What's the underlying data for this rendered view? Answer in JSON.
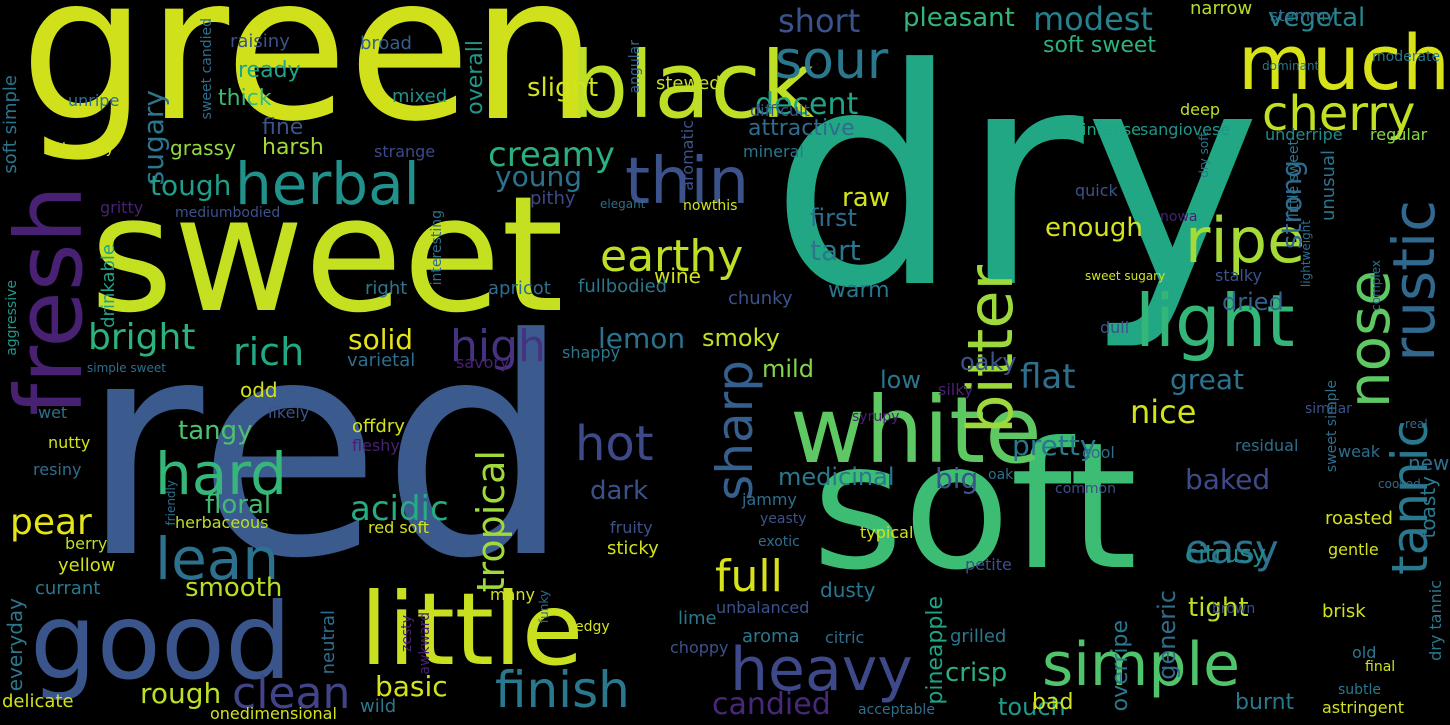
{
  "background": "#000000",
  "words": [
    {
      "text": "dry",
      "color": "#22a784"
    },
    {
      "text": "red",
      "color": "#3b5a8e"
    },
    {
      "text": "green",
      "color": "#d0e11c"
    },
    {
      "text": "sweet",
      "color": "#c5e021"
    },
    {
      "text": "soft",
      "color": "#3dbc74"
    },
    {
      "text": "black",
      "color": "#bddf26"
    },
    {
      "text": "good",
      "color": "#39558c"
    },
    {
      "text": "little",
      "color": "#c8e020"
    },
    {
      "text": "white",
      "color": "#5ec962"
    },
    {
      "text": "fresh",
      "color": "#482173"
    },
    {
      "text": "much",
      "color": "#d8e219"
    },
    {
      "text": "cherry",
      "color": "#c2df23"
    },
    {
      "text": "herbal",
      "color": "#21918c"
    },
    {
      "text": "sour",
      "color": "#2a788e"
    },
    {
      "text": "thin",
      "color": "#3b528b"
    },
    {
      "text": "light",
      "color": "#34b679"
    },
    {
      "text": "ripe",
      "color": "#a5db36"
    },
    {
      "text": "bitter",
      "color": "#9dd93b"
    },
    {
      "text": "nose",
      "color": "#5ec962"
    },
    {
      "text": "rustic",
      "color": "#31688e"
    },
    {
      "text": "tannic",
      "color": "#2a788e"
    },
    {
      "text": "heavy",
      "color": "#3e4989"
    },
    {
      "text": "simple",
      "color": "#50c46a"
    },
    {
      "text": "hard",
      "color": "#35b779"
    },
    {
      "text": "lean",
      "color": "#2c718e"
    },
    {
      "text": "sharp",
      "color": "#355f8d"
    },
    {
      "text": "earthy",
      "color": "#bddf26"
    },
    {
      "text": "hot",
      "color": "#3e4989"
    },
    {
      "text": "finish",
      "color": "#2a788e"
    },
    {
      "text": "tropical",
      "color": "#9fda3a"
    },
    {
      "text": "full",
      "color": "#d8e219"
    },
    {
      "text": "clean",
      "color": "#414487"
    },
    {
      "text": "acidic",
      "color": "#25ac82"
    },
    {
      "text": "easy",
      "color": "#2c728e"
    },
    {
      "text": "rich",
      "color": "#22a884"
    },
    {
      "text": "high",
      "color": "#46327e"
    },
    {
      "text": "bright",
      "color": "#2db27d"
    },
    {
      "text": "pear",
      "color": "#e5e419"
    },
    {
      "text": "sugary",
      "color": "#2b758e"
    },
    {
      "text": "creamy",
      "color": "#2ab07f"
    },
    {
      "text": "decent",
      "color": "#20a386"
    },
    {
      "text": "attractive",
      "color": "#2f6c8e"
    },
    {
      "text": "pleasant",
      "color": "#31b57b"
    },
    {
      "text": "modest",
      "color": "#27808e"
    },
    {
      "text": "short",
      "color": "#3a538b"
    },
    {
      "text": "vegetal",
      "color": "#24878e"
    },
    {
      "text": "soft sweet",
      "color": "#2db27d"
    },
    {
      "text": "flat",
      "color": "#2e6f8e"
    },
    {
      "text": "crisp",
      "color": "#2ab07f"
    },
    {
      "text": "basic",
      "color": "#d2e21b"
    },
    {
      "text": "rough",
      "color": "#bddf26"
    },
    {
      "text": "smooth",
      "color": "#b8de29"
    },
    {
      "text": "floral",
      "color": "#3fbc73"
    },
    {
      "text": "tangy",
      "color": "#4cc26c"
    },
    {
      "text": "dark",
      "color": "#3b518b"
    },
    {
      "text": "baked",
      "color": "#3e4a89"
    },
    {
      "text": "great",
      "color": "#2c738e"
    },
    {
      "text": "pretty",
      "color": "#2a788e"
    },
    {
      "text": "nice",
      "color": "#d2e21b"
    },
    {
      "text": "candied",
      "color": "#482878"
    },
    {
      "text": "touch",
      "color": "#1e9b8a"
    },
    {
      "text": "solid",
      "color": "#e5e419"
    },
    {
      "text": "lemon",
      "color": "#2c718e"
    },
    {
      "text": "smoky",
      "color": "#c0df25"
    },
    {
      "text": "mild",
      "color": "#84d44b"
    },
    {
      "text": "low",
      "color": "#2a768e"
    },
    {
      "text": "oaky",
      "color": "#3b528b"
    },
    {
      "text": "big",
      "color": "#3b528b"
    },
    {
      "text": "medicinal",
      "color": "#2a788e"
    },
    {
      "text": "tough",
      "color": "#1f9e89"
    },
    {
      "text": "young",
      "color": "#2c718e"
    },
    {
      "text": "raw",
      "color": "#d2e21b"
    },
    {
      "text": "first",
      "color": "#2e6e8e"
    },
    {
      "text": "tart",
      "color": "#2a778e"
    },
    {
      "text": "warm",
      "color": "#2a768e"
    },
    {
      "text": "wine",
      "color": "#d2e21b"
    },
    {
      "text": "enough",
      "color": "#d2e21b"
    },
    {
      "text": "strong",
      "color": "#31688e"
    },
    {
      "text": "dried",
      "color": "#34618d"
    },
    {
      "text": "tight",
      "color": "#bddf26"
    },
    {
      "text": "citrusy",
      "color": "#228c8d"
    },
    {
      "text": "generic",
      "color": "#2f6c8e"
    },
    {
      "text": "overripe",
      "color": "#2a778e"
    },
    {
      "text": "pineapple",
      "color": "#20a486"
    },
    {
      "text": "ready",
      "color": "#20a486"
    },
    {
      "text": "thick",
      "color": "#3bbb75"
    },
    {
      "text": "fine",
      "color": "#3b528b"
    },
    {
      "text": "harsh",
      "color": "#a2da37"
    },
    {
      "text": "grassy",
      "color": "#94d840"
    },
    {
      "text": "slight",
      "color": "#d2e21b"
    },
    {
      "text": "overall",
      "color": "#1f978b"
    },
    {
      "text": "raisiny",
      "color": "#3b528b"
    },
    {
      "text": "mixed",
      "color": "#20938c"
    },
    {
      "text": "broad",
      "color": "#34608d"
    },
    {
      "text": "stewed",
      "color": "#c5df21"
    },
    {
      "text": "narrow",
      "color": "#b5de2b"
    },
    {
      "text": "stemmy",
      "color": "#2e6e8e"
    },
    {
      "text": "moderate",
      "color": "#2a778e"
    },
    {
      "text": "dominant",
      "color": "#2b758e"
    },
    {
      "text": "deep",
      "color": "#bddf26"
    },
    {
      "text": "regular",
      "color": "#8bd646"
    },
    {
      "text": "underripe",
      "color": "#228b8d"
    },
    {
      "text": "sangiovese",
      "color": "#1f958b"
    },
    {
      "text": "intense",
      "color": "#20a386"
    },
    {
      "text": "unusual",
      "color": "#2b748e"
    },
    {
      "text": "mineral",
      "color": "#2a788e"
    },
    {
      "text": "aromatic",
      "color": "#3b528b"
    },
    {
      "text": "difficult",
      "color": "#3b528b"
    },
    {
      "text": "angular",
      "color": "#31688e"
    },
    {
      "text": "sweet candied",
      "color": "#2e6e8e"
    },
    {
      "text": "soft simple",
      "color": "#2b748e"
    },
    {
      "text": "unripe",
      "color": "#2e6e8e"
    },
    {
      "text": "lemony",
      "color": "#d2e21b"
    },
    {
      "text": "strange",
      "color": "#3e4989"
    },
    {
      "text": "gritty",
      "color": "#482173"
    },
    {
      "text": "mediumbodied",
      "color": "#3b528b"
    },
    {
      "text": "drinkable",
      "color": "#20a386"
    },
    {
      "text": "pithy",
      "color": "#3e4989"
    },
    {
      "text": "elegant",
      "color": "#2e6e8e"
    },
    {
      "text": "nowthis",
      "color": "#d2e21b"
    },
    {
      "text": "interesting",
      "color": "#2e6e8e"
    },
    {
      "text": "chunky",
      "color": "#3b528b"
    },
    {
      "text": "apricot",
      "color": "#2e6e8e"
    },
    {
      "text": "fullbodied",
      "color": "#2a788e"
    },
    {
      "text": "right",
      "color": "#2a788e"
    },
    {
      "text": "aggressive",
      "color": "#1f978b"
    },
    {
      "text": "varietal",
      "color": "#2e6e8e"
    },
    {
      "text": "shappy",
      "color": "#2a788e"
    },
    {
      "text": "savory",
      "color": "#482173"
    },
    {
      "text": "simple sweet",
      "color": "#2e6e8e"
    },
    {
      "text": "odd",
      "color": "#d2e21b"
    },
    {
      "text": "likely",
      "color": "#3b528b"
    },
    {
      "text": "wet",
      "color": "#2e6e8e"
    },
    {
      "text": "offdry",
      "color": "#d2e21b"
    },
    {
      "text": "fleshy",
      "color": "#482173"
    },
    {
      "text": "nutty",
      "color": "#d2e21b"
    },
    {
      "text": "resiny",
      "color": "#2e6e8e"
    },
    {
      "text": "friendly",
      "color": "#2e6e8e"
    },
    {
      "text": "herbaceous",
      "color": "#bddf26"
    },
    {
      "text": "sticky",
      "color": "#d2e21b"
    },
    {
      "text": "fruity",
      "color": "#3b528b"
    },
    {
      "text": "red soft",
      "color": "#d2e21b"
    },
    {
      "text": "berry",
      "color": "#bddf26"
    },
    {
      "text": "yellow",
      "color": "#d2e21b"
    },
    {
      "text": "currant",
      "color": "#2a788e"
    },
    {
      "text": "everyday",
      "color": "#2a788e"
    },
    {
      "text": "delicate",
      "color": "#d2e21b"
    },
    {
      "text": "onedimensional",
      "color": "#d2e21b"
    },
    {
      "text": "neutral",
      "color": "#2e6e8e"
    },
    {
      "text": "zesty",
      "color": "#482173"
    },
    {
      "text": "awkward",
      "color": "#482173"
    },
    {
      "text": "many",
      "color": "#d2e21b"
    },
    {
      "text": "funky",
      "color": "#2e6e8e"
    },
    {
      "text": "edgy",
      "color": "#d2e21b"
    },
    {
      "text": "choppy",
      "color": "#3b528b"
    },
    {
      "text": "lime",
      "color": "#2a788e"
    },
    {
      "text": "aroma",
      "color": "#2a788e"
    },
    {
      "text": "unbalanced",
      "color": "#3b528b"
    },
    {
      "text": "dusty",
      "color": "#2a788e"
    },
    {
      "text": "citric",
      "color": "#2e6e8e"
    },
    {
      "text": "wild",
      "color": "#2a788e"
    },
    {
      "text": "acceptable",
      "color": "#2e6e8e"
    },
    {
      "text": "bad",
      "color": "#d2e21b"
    },
    {
      "text": "burnt",
      "color": "#2a788e"
    },
    {
      "text": "astringent",
      "color": "#d2e21b"
    },
    {
      "text": "grilled",
      "color": "#2a788e"
    },
    {
      "text": "petite",
      "color": "#3b528b"
    },
    {
      "text": "exotic",
      "color": "#2e6e8e"
    },
    {
      "text": "typical",
      "color": "#d2e21b"
    },
    {
      "text": "yeasty",
      "color": "#3b528b"
    },
    {
      "text": "jammy",
      "color": "#2e6e8e"
    },
    {
      "text": "silky",
      "color": "#482173"
    },
    {
      "text": "syrupy",
      "color": "#482173"
    },
    {
      "text": "oak",
      "color": "#2e6e8e"
    },
    {
      "text": "cool",
      "color": "#2e6e8e"
    },
    {
      "text": "common",
      "color": "#3b528b"
    },
    {
      "text": "similar",
      "color": "#3b528b"
    },
    {
      "text": "residual",
      "color": "#2e6e8e"
    },
    {
      "text": "weak",
      "color": "#2e6e8e"
    },
    {
      "text": "roasted",
      "color": "#d2e21b"
    },
    {
      "text": "gentle",
      "color": "#d2e21b"
    },
    {
      "text": "brisk",
      "color": "#d2e21b"
    },
    {
      "text": "brown",
      "color": "#3b528b"
    },
    {
      "text": "old",
      "color": "#2a788e"
    },
    {
      "text": "final",
      "color": "#d2e21b"
    },
    {
      "text": "subtle",
      "color": "#2a788e"
    },
    {
      "text": "cooked",
      "color": "#2e6e8e"
    },
    {
      "text": "real",
      "color": "#2e6e8e"
    },
    {
      "text": "new",
      "color": "#2e6e8e"
    },
    {
      "text": "dry tannic",
      "color": "#2a788e"
    },
    {
      "text": "toasty",
      "color": "#2a788e"
    },
    {
      "text": "sweet simple",
      "color": "#2e6e8e"
    },
    {
      "text": "complex",
      "color": "#2e6e8e"
    },
    {
      "text": "quick",
      "color": "#3b528b"
    },
    {
      "text": "nowa",
      "color": "#482173"
    },
    {
      "text": "lightweight",
      "color": "#2e6e8e"
    },
    {
      "text": "stalky",
      "color": "#3b528b"
    },
    {
      "text": "dull",
      "color": "#3b528b"
    },
    {
      "text": "sweet sugary",
      "color": "#d2e21b"
    },
    {
      "text": "little sweet",
      "color": "#2a788e"
    },
    {
      "text": "dry soft",
      "color": "#2a788e"
    }
  ]
}
